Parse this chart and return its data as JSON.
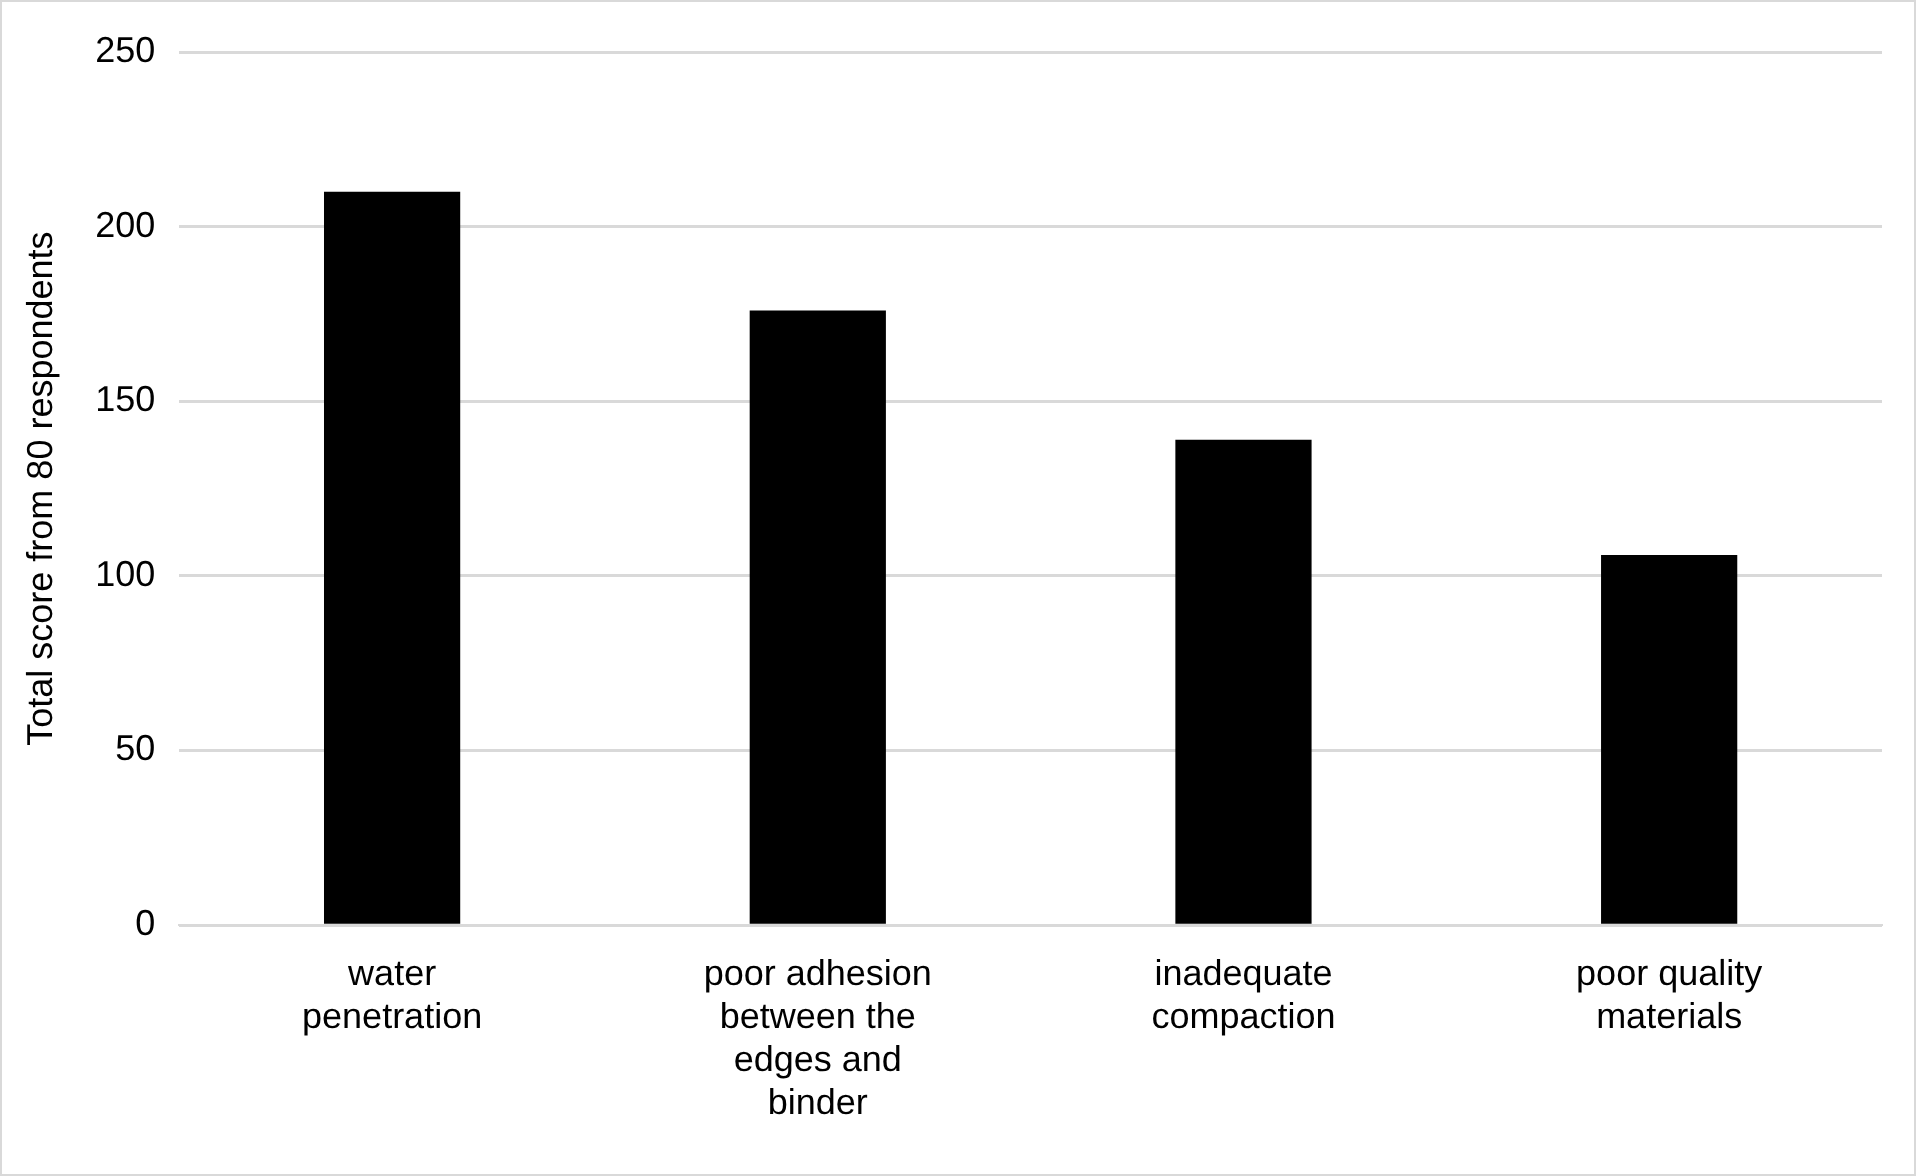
{
  "chart_data": {
    "type": "bar",
    "ylabel": "Total score from 80 respondents",
    "categories": [
      "water penetration",
      "poor adhesion between the edges and binder",
      "inadequate compaction",
      "poor quality materials"
    ],
    "values": [
      210,
      176,
      139,
      106
    ],
    "color": "#000000",
    "ylim": [
      0,
      250
    ],
    "yticks": [
      0,
      50,
      100,
      150,
      200,
      250
    ],
    "grid": "y",
    "legend": false
  }
}
